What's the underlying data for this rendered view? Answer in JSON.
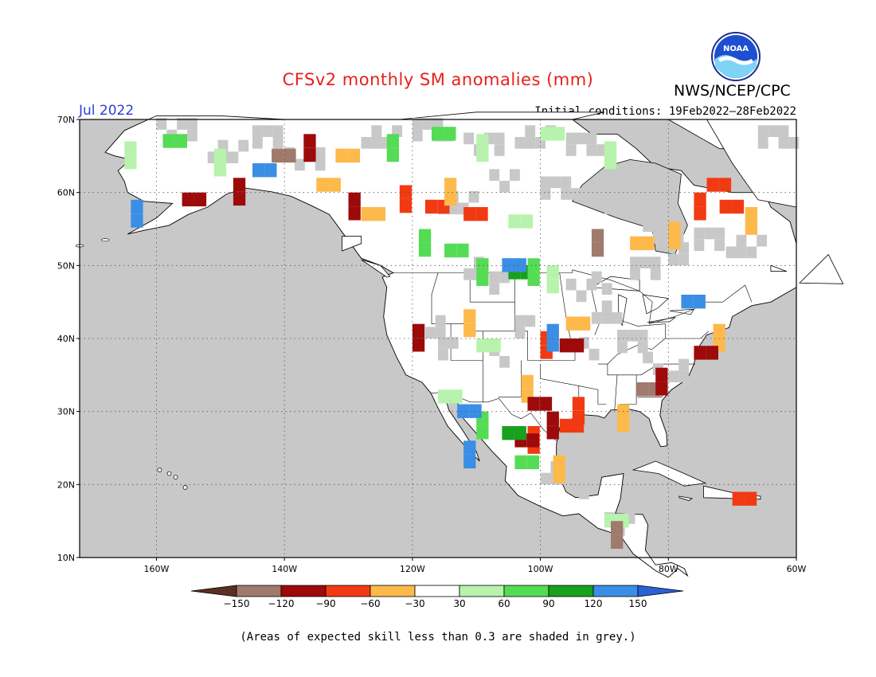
{
  "title": "CFSv2 monthly SM anomalies (mm)",
  "organization": "NWS/NCEP/CPC",
  "logo_text": "NOAA",
  "valid_month": "Jul 2022",
  "initial_conditions": "Initial conditions: 19Feb2022–28Feb2022",
  "footnote": "(Areas of expected skill less than 0.3 are shaded in grey.)",
  "colors": {
    "title": "#e8201c",
    "valid_month": "#2b3fd6",
    "grey_low_skill": "#c8c8c8",
    "land_white": "#ffffff",
    "coastline": "#000000"
  },
  "map": {
    "projection": "cylindrical equidistant",
    "lon_range": [
      -172,
      -60
    ],
    "lat_range": [
      10,
      70
    ],
    "lat_labels": [
      "70N",
      "60N",
      "50N",
      "40N",
      "30N",
      "20N",
      "10N"
    ],
    "lon_labels": [
      "160W",
      "140W",
      "120W",
      "100W",
      "80W",
      "60W"
    ],
    "gridlines": "dotted"
  },
  "colorbar": {
    "labels": [
      "−150",
      "−120",
      "−90",
      "−60",
      "−30",
      "30",
      "60",
      "90",
      "120",
      "150"
    ],
    "bins": [
      {
        "range": "< -150",
        "color": "#5c2f22"
      },
      {
        "range": "-150 to -120",
        "color": "#a07a6c"
      },
      {
        "range": "-120 to -90",
        "color": "#9c0a0a"
      },
      {
        "range": "-90 to -60",
        "color": "#f23a12"
      },
      {
        "range": "-60 to -30",
        "color": "#fdb94a"
      },
      {
        "range": "-30 to 30",
        "color": "#ffffff"
      },
      {
        "range": "30 to 60",
        "color": "#b7f3ac"
      },
      {
        "range": "60 to 90",
        "color": "#55dc55"
      },
      {
        "range": "90 to 120",
        "color": "#17a11c"
      },
      {
        "range": "120 to 150",
        "color": "#3a8ee6"
      },
      {
        "range": "> 150",
        "color": "#2a62d6"
      }
    ]
  },
  "anomaly_cells": [
    {
      "lon": -165,
      "lat": 67,
      "category": "30 to 60"
    },
    {
      "lon": -159,
      "lat": 68,
      "category": "60 to 90"
    },
    {
      "lon": -151,
      "lat": 66,
      "category": "30 to 60"
    },
    {
      "lon": -142,
      "lat": 66,
      "category": "-150 to -120"
    },
    {
      "lon": -137,
      "lat": 68,
      "category": "-120 to -90"
    },
    {
      "lon": -132,
      "lat": 66,
      "category": "-60 to -30"
    },
    {
      "lon": -124,
      "lat": 68,
      "category": "60 to 90"
    },
    {
      "lon": -117,
      "lat": 69,
      "category": "60 to 90"
    },
    {
      "lon": -110,
      "lat": 68,
      "category": "30 to 60"
    },
    {
      "lon": -100,
      "lat": 69,
      "category": "30 to 60"
    },
    {
      "lon": -90,
      "lat": 67,
      "category": "30 to 60"
    },
    {
      "lon": -145,
      "lat": 64,
      "category": "120 to 150"
    },
    {
      "lon": -148,
      "lat": 62,
      "category": "-120 to -90"
    },
    {
      "lon": -156,
      "lat": 60,
      "category": "-120 to -90"
    },
    {
      "lon": -164,
      "lat": 59,
      "category": "120 to 150"
    },
    {
      "lon": -135,
      "lat": 62,
      "category": "-60 to -30"
    },
    {
      "lon": -130,
      "lat": 60,
      "category": "-120 to -90"
    },
    {
      "lon": -128,
      "lat": 58,
      "category": "-60 to -30"
    },
    {
      "lon": -122,
      "lat": 61,
      "category": "-90 to -60"
    },
    {
      "lon": -118,
      "lat": 59,
      "category": "-90 to -60"
    },
    {
      "lon": -115,
      "lat": 62,
      "category": "-60 to -30"
    },
    {
      "lon": -112,
      "lat": 58,
      "category": "-90 to -60"
    },
    {
      "lon": -119,
      "lat": 55,
      "category": "60 to 90"
    },
    {
      "lon": -115,
      "lat": 53,
      "category": "60 to 90"
    },
    {
      "lon": -110,
      "lat": 51,
      "category": "60 to 90"
    },
    {
      "lon": -105,
      "lat": 50,
      "category": "90 to 120"
    },
    {
      "lon": -102,
      "lat": 51,
      "category": "60 to 90"
    },
    {
      "lon": -106,
      "lat": 51,
      "category": "120 to 150"
    },
    {
      "lon": -99,
      "lat": 50,
      "category": "30 to 60"
    },
    {
      "lon": -105,
      "lat": 57,
      "category": "30 to 60"
    },
    {
      "lon": -76,
      "lat": 60,
      "category": "-90 to -60"
    },
    {
      "lon": -72,
      "lat": 59,
      "category": "-90 to -60"
    },
    {
      "lon": -68,
      "lat": 58,
      "category": "-60 to -30"
    },
    {
      "lon": -74,
      "lat": 62,
      "category": "-90 to -60"
    },
    {
      "lon": -80,
      "lat": 56,
      "category": "-60 to -30"
    },
    {
      "lon": -86,
      "lat": 54,
      "category": "-60 to -30"
    },
    {
      "lon": -92,
      "lat": 55,
      "category": "-150 to -120"
    },
    {
      "lon": -78,
      "lat": 46,
      "category": "120 to 150"
    },
    {
      "lon": -73,
      "lat": 42,
      "category": "-60 to -30"
    },
    {
      "lon": -76,
      "lat": 39,
      "category": "-120 to -90"
    },
    {
      "lon": -100,
      "lat": 41,
      "category": "-90 to -60"
    },
    {
      "lon": -97,
      "lat": 40,
      "category": "-120 to -90"
    },
    {
      "lon": -99,
      "lat": 42,
      "category": "120 to 150"
    },
    {
      "lon": -96,
      "lat": 43,
      "category": "-60 to -30"
    },
    {
      "lon": -103,
      "lat": 35,
      "category": "-60 to -30"
    },
    {
      "lon": -102,
      "lat": 32,
      "category": "-120 to -90"
    },
    {
      "lon": -99,
      "lat": 30,
      "category": "-120 to -90"
    },
    {
      "lon": -97,
      "lat": 29,
      "category": "-90 to -60"
    },
    {
      "lon": -102,
      "lat": 28,
      "category": "-90 to -60"
    },
    {
      "lon": -104,
      "lat": 27,
      "category": "-120 to -90"
    },
    {
      "lon": -95,
      "lat": 32,
      "category": "-90 to -60"
    },
    {
      "lon": -106,
      "lat": 28,
      "category": "90 to 120"
    },
    {
      "lon": -110,
      "lat": 30,
      "category": "60 to 90"
    },
    {
      "lon": -113,
      "lat": 31,
      "category": "120 to 150"
    },
    {
      "lon": -112,
      "lat": 26,
      "category": "120 to 150"
    },
    {
      "lon": -116,
      "lat": 33,
      "category": "30 to 60"
    },
    {
      "lon": -120,
      "lat": 42,
      "category": "-120 to -90"
    },
    {
      "lon": -110,
      "lat": 40,
      "category": "30 to 60"
    },
    {
      "lon": -112,
      "lat": 44,
      "category": "-60 to -30"
    },
    {
      "lon": -104,
      "lat": 24,
      "category": "60 to 90"
    },
    {
      "lon": -98,
      "lat": 24,
      "category": "-60 to -30"
    },
    {
      "lon": -90,
      "lat": 16,
      "category": "30 to 60"
    },
    {
      "lon": -89,
      "lat": 15,
      "category": "-150 to -120"
    },
    {
      "lon": -70,
      "lat": 19,
      "category": "-90 to -60"
    },
    {
      "lon": -88,
      "lat": 31,
      "category": "-60 to -30"
    },
    {
      "lon": -85,
      "lat": 34,
      "category": "-150 to -120"
    },
    {
      "lon": -82,
      "lat": 36,
      "category": "-120 to -90"
    }
  ]
}
